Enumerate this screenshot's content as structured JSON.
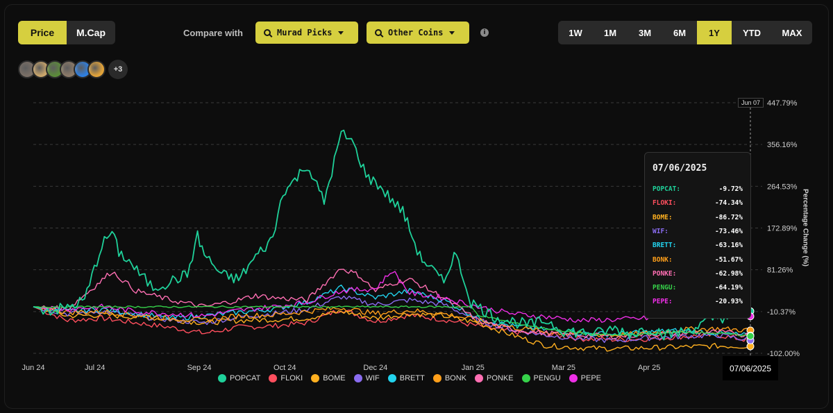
{
  "controls": {
    "metric_tabs": [
      {
        "label": "Price",
        "active": true
      },
      {
        "label": "M.Cap",
        "active": false
      }
    ],
    "compare_label": "Compare with",
    "dropdowns": [
      {
        "label": "Murad Picks"
      },
      {
        "label": "Other Coins"
      }
    ],
    "info_glyph": "i",
    "range_tabs": [
      {
        "label": "1W",
        "active": false
      },
      {
        "label": "1M",
        "active": false
      },
      {
        "label": "3M",
        "active": false
      },
      {
        "label": "6M",
        "active": false
      },
      {
        "label": "1Y",
        "active": true
      },
      {
        "label": "YTD",
        "active": false
      },
      {
        "label": "MAX",
        "active": false
      }
    ],
    "avatar_colors": [
      "#7a6f66",
      "#c9a56b",
      "#5b8a3a",
      "#8c7a68",
      "#2f7fe0",
      "#e0a23a"
    ],
    "more_label": "+3"
  },
  "tooltip": {
    "date": "07/06/2025",
    "rows": [
      {
        "name": "POPCAT:",
        "value": "-9.72%",
        "color": "#1fd19a"
      },
      {
        "name": "FLOKI:",
        "value": "-74.34%",
        "color": "#ff4f5e"
      },
      {
        "name": "BOME:",
        "value": "-86.72%",
        "color": "#ffb020"
      },
      {
        "name": "WIF:",
        "value": "-73.46%",
        "color": "#8a6cf0"
      },
      {
        "name": "BRETT:",
        "value": "-63.16%",
        "color": "#22d3ee"
      },
      {
        "name": "BONK:",
        "value": "-51.67%",
        "color": "#ff9f1a"
      },
      {
        "name": "PONKE:",
        "value": "-62.98%",
        "color": "#ff6fb3"
      },
      {
        "name": "PENGU:",
        "value": "-64.19%",
        "color": "#36d24a"
      },
      {
        "name": "PEPE:",
        "value": "-20.93%",
        "color": "#ee2fe6"
      }
    ]
  },
  "crosshair": {
    "top_label": "Jun 07",
    "bottom_label": "07/06/2025"
  },
  "chart_data": {
    "type": "line",
    "ylabel": "Percentage Change (%)",
    "ylim": [
      -102.0,
      447.79
    ],
    "y_ticks": [
      "447.79%",
      "356.16%",
      "264.53%",
      "172.89%",
      "81.26%",
      "-10.37%",
      "-102.00%"
    ],
    "y_tick_values": [
      447.79,
      356.16,
      264.53,
      172.89,
      81.26,
      -10.37,
      -102.0
    ],
    "x_ticks": [
      "Jun 24",
      "Jul 24",
      "Sep 24",
      "Oct 24",
      "Dec 24",
      "Jan 25",
      "Mar 25",
      "Apr 25"
    ],
    "x_tick_days": [
      0,
      36,
      97,
      147,
      200,
      257,
      310,
      360
    ],
    "x_range_days": [
      0,
      420
    ],
    "grid": true,
    "legend_position": "bottom",
    "series": [
      {
        "name": "POPCAT",
        "color": "#1fd19a",
        "x": [
          0,
          10,
          20,
          30,
          40,
          46,
          50,
          56,
          62,
          70,
          80,
          86,
          90,
          96,
          100,
          110,
          120,
          130,
          140,
          146,
          150,
          160,
          170,
          176,
          180,
          186,
          190,
          196,
          200,
          210,
          216,
          220,
          226,
          230,
          240,
          246,
          250,
          256,
          260,
          270,
          280,
          290,
          300,
          310,
          320,
          330,
          340,
          350,
          360,
          370,
          380,
          390,
          400,
          410,
          420
        ],
        "y": [
          0,
          -8,
          -2,
          15,
          135,
          165,
          120,
          100,
          72,
          42,
          55,
          65,
          70,
          155,
          115,
          70,
          60,
          110,
          150,
          255,
          265,
          312,
          230,
          320,
          380,
          365,
          330,
          280,
          275,
          232,
          210,
          170,
          110,
          95,
          52,
          120,
          80,
          10,
          0,
          -22,
          -32,
          -40,
          -30,
          -52,
          -56,
          -58,
          -48,
          -60,
          -45,
          -62,
          -55,
          -40,
          -22,
          -24,
          -9.72
        ]
      },
      {
        "name": "FLOKI",
        "color": "#ff4f5e",
        "x": [
          0,
          20,
          40,
          60,
          80,
          100,
          120,
          140,
          160,
          180,
          200,
          220,
          240,
          260,
          280,
          300,
          320,
          340,
          360,
          380,
          400,
          420
        ],
        "y": [
          0,
          -30,
          -25,
          -35,
          -45,
          -58,
          -45,
          -42,
          -35,
          -5,
          -32,
          -18,
          -28,
          -42,
          -55,
          -60,
          -70,
          -72,
          -70,
          -65,
          -62,
          -74.34
        ]
      },
      {
        "name": "BOME",
        "color": "#ffb020",
        "x": [
          0,
          20,
          40,
          60,
          80,
          100,
          120,
          140,
          160,
          180,
          200,
          220,
          240,
          260,
          280,
          300,
          320,
          340,
          360,
          380,
          400,
          420
        ],
        "y": [
          0,
          -20,
          -18,
          -22,
          -28,
          -35,
          -30,
          -28,
          -25,
          -10,
          -25,
          -15,
          -20,
          -35,
          -62,
          -85,
          -90,
          -92,
          -90,
          -88,
          -86,
          -86.72
        ]
      },
      {
        "name": "WIF",
        "color": "#8a6cf0",
        "x": [
          0,
          20,
          40,
          60,
          80,
          100,
          120,
          140,
          160,
          180,
          200,
          220,
          240,
          260,
          280,
          300,
          320,
          340,
          360,
          380,
          400,
          420
        ],
        "y": [
          0,
          -15,
          -10,
          -20,
          -28,
          -35,
          -22,
          -15,
          -5,
          22,
          5,
          15,
          5,
          -30,
          -50,
          -62,
          -70,
          -74,
          -68,
          -65,
          -62,
          -73.46
        ]
      },
      {
        "name": "BRETT",
        "color": "#22d3ee",
        "x": [
          0,
          20,
          40,
          60,
          80,
          100,
          120,
          140,
          160,
          180,
          200,
          220,
          240,
          260,
          280,
          300,
          320,
          340,
          360,
          380,
          400,
          420
        ],
        "y": [
          0,
          -10,
          -5,
          -15,
          -25,
          -20,
          -12,
          -5,
          10,
          42,
          20,
          35,
          15,
          -25,
          -42,
          -50,
          -58,
          -60,
          -55,
          -52,
          -58,
          -63.16
        ]
      },
      {
        "name": "BONK",
        "color": "#ff9f1a",
        "x": [
          0,
          20,
          40,
          60,
          80,
          100,
          120,
          140,
          160,
          180,
          200,
          220,
          240,
          260,
          280,
          300,
          320,
          340,
          360,
          380,
          400,
          420
        ],
        "y": [
          0,
          -12,
          -10,
          -18,
          -25,
          -30,
          -20,
          -18,
          -10,
          -2,
          -15,
          -8,
          -15,
          -30,
          -45,
          -55,
          -60,
          -62,
          -58,
          -50,
          -48,
          -51.67
        ]
      },
      {
        "name": "PONKE",
        "color": "#ff6fb3",
        "x": [
          0,
          20,
          36,
          46,
          60,
          80,
          100,
          120,
          130,
          140,
          160,
          180,
          190,
          200,
          210,
          220,
          240,
          260,
          280,
          300,
          320,
          340,
          360,
          380,
          400,
          420
        ],
        "y": [
          0,
          -5,
          45,
          78,
          35,
          15,
          0,
          15,
          25,
          20,
          15,
          85,
          70,
          35,
          52,
          60,
          20,
          -30,
          -50,
          -58,
          -62,
          -65,
          -60,
          -58,
          -55,
          -62.98
        ]
      },
      {
        "name": "PENGU",
        "color": "#36d24a",
        "x": [
          0,
          100,
          150,
          200,
          254,
          256,
          260,
          280,
          300,
          320,
          340,
          360,
          380,
          400,
          420
        ],
        "y": [
          0,
          0,
          0,
          0,
          0,
          0,
          -18,
          -35,
          -48,
          -58,
          -62,
          -60,
          -55,
          -58,
          -64.19
        ]
      },
      {
        "name": "PEPE",
        "color": "#ee2fe6",
        "x": [
          0,
          20,
          40,
          60,
          80,
          100,
          120,
          140,
          160,
          180,
          200,
          210,
          220,
          240,
          260,
          280,
          300,
          320,
          340,
          360,
          380,
          400,
          420
        ],
        "y": [
          0,
          -5,
          0,
          -10,
          -15,
          -20,
          -8,
          0,
          10,
          35,
          40,
          80,
          30,
          20,
          0,
          -15,
          -22,
          -30,
          -28,
          -25,
          -15,
          -18,
          -20.93
        ]
      }
    ]
  }
}
